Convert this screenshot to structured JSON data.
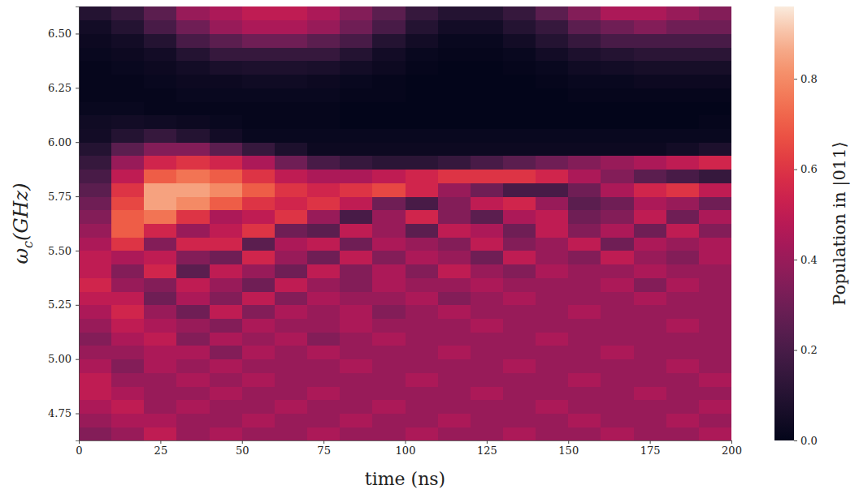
{
  "chart_data": {
    "type": "heatmap",
    "xlabel": "time (ns)",
    "ylabel": [
      "ω",
      "c",
      "(GHz)"
    ],
    "xlim": [
      0,
      200
    ],
    "ylim": [
      4.625,
      6.625
    ],
    "xticks": [
      0,
      25,
      50,
      75,
      100,
      125,
      150,
      175,
      200
    ],
    "yticks": [
      4.75,
      {
        "value": 5,
        "label": "5.00"
      },
      5.25,
      {
        "value": 5.5,
        "label": "5.50"
      },
      5.75,
      {
        "value": 6,
        "label": "6.00"
      },
      6.25,
      {
        "value": 6.5,
        "label": "6.50"
      }
    ],
    "x_bins": [
      0,
      10,
      20,
      30,
      40,
      50,
      60,
      70,
      80,
      90,
      100,
      110,
      120,
      130,
      140,
      150,
      160,
      170,
      180,
      190,
      200
    ],
    "y_bins": [
      4.625,
      4.6875,
      4.75,
      4.8125,
      4.875,
      4.9375,
      5,
      5.0625,
      5.125,
      5.1875,
      5.25,
      5.3125,
      5.375,
      5.4375,
      5.5,
      5.5625,
      5.625,
      5.6875,
      5.75,
      5.8125,
      5.875,
      5.9375,
      6,
      6.0625,
      6.125,
      6.1875,
      6.25,
      6.3125,
      6.375,
      6.4375,
      6.5,
      6.5625,
      6.625
    ],
    "values": [
      [
        0.35,
        0.4,
        0.5,
        0.4,
        0.45,
        0.4,
        0.4,
        0.45,
        0.4,
        0.4,
        0.45,
        0.4,
        0.4,
        0.45,
        0.4,
        0.4,
        0.45,
        0.4,
        0.4,
        0.45
      ],
      [
        0.4,
        0.45,
        0.45,
        0.4,
        0.4,
        0.45,
        0.4,
        0.4,
        0.45,
        0.4,
        0.4,
        0.45,
        0.4,
        0.4,
        0.4,
        0.45,
        0.4,
        0.4,
        0.45,
        0.4
      ],
      [
        0.45,
        0.5,
        0.4,
        0.45,
        0.4,
        0.4,
        0.45,
        0.4,
        0.4,
        0.45,
        0.4,
        0.4,
        0.4,
        0.4,
        0.45,
        0.4,
        0.4,
        0.4,
        0.4,
        0.45
      ],
      [
        0.5,
        0.45,
        0.4,
        0.4,
        0.45,
        0.4,
        0.4,
        0.45,
        0.4,
        0.4,
        0.4,
        0.4,
        0.45,
        0.4,
        0.4,
        0.4,
        0.4,
        0.45,
        0.4,
        0.4
      ],
      [
        0.5,
        0.4,
        0.4,
        0.45,
        0.4,
        0.45,
        0.4,
        0.4,
        0.4,
        0.4,
        0.45,
        0.4,
        0.4,
        0.4,
        0.4,
        0.45,
        0.4,
        0.4,
        0.4,
        0.45
      ],
      [
        0.45,
        0.35,
        0.45,
        0.4,
        0.45,
        0.4,
        0.4,
        0.4,
        0.45,
        0.4,
        0.4,
        0.4,
        0.4,
        0.45,
        0.4,
        0.4,
        0.4,
        0.4,
        0.45,
        0.4
      ],
      [
        0.4,
        0.4,
        0.45,
        0.45,
        0.35,
        0.45,
        0.4,
        0.45,
        0.4,
        0.4,
        0.4,
        0.45,
        0.4,
        0.4,
        0.4,
        0.4,
        0.45,
        0.4,
        0.4,
        0.4
      ],
      [
        0.35,
        0.45,
        0.5,
        0.35,
        0.45,
        0.4,
        0.45,
        0.35,
        0.4,
        0.45,
        0.4,
        0.4,
        0.4,
        0.4,
        0.45,
        0.4,
        0.4,
        0.4,
        0.4,
        0.4
      ],
      [
        0.4,
        0.5,
        0.45,
        0.4,
        0.35,
        0.45,
        0.4,
        0.4,
        0.45,
        0.4,
        0.4,
        0.4,
        0.45,
        0.4,
        0.4,
        0.4,
        0.4,
        0.4,
        0.45,
        0.4
      ],
      [
        0.45,
        0.55,
        0.4,
        0.3,
        0.5,
        0.35,
        0.45,
        0.4,
        0.45,
        0.35,
        0.4,
        0.45,
        0.4,
        0.4,
        0.4,
        0.45,
        0.4,
        0.4,
        0.4,
        0.4
      ],
      [
        0.5,
        0.5,
        0.3,
        0.45,
        0.35,
        0.5,
        0.35,
        0.45,
        0.4,
        0.4,
        0.45,
        0.35,
        0.4,
        0.45,
        0.4,
        0.4,
        0.4,
        0.45,
        0.4,
        0.4
      ],
      [
        0.55,
        0.4,
        0.35,
        0.5,
        0.4,
        0.3,
        0.5,
        0.4,
        0.35,
        0.45,
        0.4,
        0.4,
        0.45,
        0.4,
        0.4,
        0.4,
        0.45,
        0.35,
        0.45,
        0.4
      ],
      [
        0.5,
        0.35,
        0.55,
        0.25,
        0.5,
        0.4,
        0.3,
        0.5,
        0.35,
        0.45,
        0.35,
        0.5,
        0.4,
        0.35,
        0.45,
        0.4,
        0.4,
        0.45,
        0.4,
        0.4
      ],
      [
        0.5,
        0.45,
        0.5,
        0.35,
        0.3,
        0.55,
        0.4,
        0.3,
        0.5,
        0.35,
        0.45,
        0.4,
        0.3,
        0.5,
        0.4,
        0.35,
        0.5,
        0.4,
        0.35,
        0.45
      ],
      [
        0.45,
        0.6,
        0.35,
        0.55,
        0.55,
        0.25,
        0.45,
        0.5,
        0.3,
        0.45,
        0.4,
        0.35,
        0.5,
        0.35,
        0.4,
        0.5,
        0.3,
        0.45,
        0.4,
        0.45
      ],
      [
        0.4,
        0.7,
        0.55,
        0.4,
        0.5,
        0.6,
        0.3,
        0.25,
        0.5,
        0.4,
        0.25,
        0.5,
        0.45,
        0.3,
        0.5,
        0.35,
        0.45,
        0.3,
        0.5,
        0.35
      ],
      [
        0.35,
        0.7,
        0.75,
        0.6,
        0.45,
        0.5,
        0.6,
        0.4,
        0.2,
        0.4,
        0.55,
        0.35,
        0.25,
        0.45,
        0.5,
        0.3,
        0.35,
        0.5,
        0.3,
        0.45
      ],
      [
        0.3,
        0.65,
        0.85,
        0.8,
        0.7,
        0.6,
        0.55,
        0.6,
        0.5,
        0.3,
        0.2,
        0.35,
        0.5,
        0.55,
        0.4,
        0.25,
        0.3,
        0.45,
        0.4,
        0.3
      ],
      [
        0.25,
        0.6,
        0.85,
        0.85,
        0.8,
        0.7,
        0.6,
        0.55,
        0.6,
        0.65,
        0.55,
        0.4,
        0.3,
        0.2,
        0.2,
        0.3,
        0.45,
        0.55,
        0.6,
        0.5
      ],
      [
        0.2,
        0.5,
        0.7,
        0.75,
        0.7,
        0.6,
        0.5,
        0.45,
        0.45,
        0.5,
        0.55,
        0.6,
        0.6,
        0.6,
        0.55,
        0.45,
        0.35,
        0.25,
        0.2,
        0.15
      ],
      [
        0.15,
        0.4,
        0.55,
        0.6,
        0.55,
        0.45,
        0.3,
        0.2,
        0.15,
        0.12,
        0.12,
        0.15,
        0.2,
        0.25,
        0.3,
        0.35,
        0.4,
        0.45,
        0.5,
        0.55
      ],
      [
        0.1,
        0.25,
        0.35,
        0.35,
        0.25,
        0.15,
        0.08,
        0.03,
        0.03,
        0.03,
        0.03,
        0.03,
        0.03,
        0.03,
        0.03,
        0.03,
        0.03,
        0.03,
        0.05,
        0.08
      ],
      [
        0.05,
        0.1,
        0.15,
        0.1,
        0.05,
        0.02,
        0.02,
        0.02,
        0.02,
        0.02,
        0.02,
        0.02,
        0.02,
        0.02,
        0.02,
        0.02,
        0.02,
        0.02,
        0.02,
        0.02
      ],
      [
        0.04,
        0.05,
        0.04,
        0.03,
        0.02,
        0.01,
        0.01,
        0.01,
        0,
        0,
        0,
        0,
        0,
        0,
        0,
        0,
        0,
        0,
        0,
        0.01
      ],
      [
        0.02,
        0.02,
        0.01,
        0.01,
        0.01,
        0.01,
        0.01,
        0.01,
        0,
        0,
        0,
        0,
        0,
        0,
        0,
        0,
        0,
        0,
        0,
        0
      ],
      [
        0.01,
        0.01,
        0.01,
        0.02,
        0.02,
        0.02,
        0.02,
        0.02,
        0.01,
        0.01,
        0,
        0,
        0,
        0,
        0,
        0.01,
        0.01,
        0.01,
        0.01,
        0.01
      ],
      [
        0.01,
        0.01,
        0.02,
        0.03,
        0.03,
        0.04,
        0.04,
        0.03,
        0.02,
        0.01,
        0,
        0,
        0,
        0,
        0.01,
        0.02,
        0.02,
        0.03,
        0.03,
        0.03
      ],
      [
        0.01,
        0.02,
        0.03,
        0.05,
        0.07,
        0.08,
        0.08,
        0.07,
        0.05,
        0.03,
        0.01,
        0,
        0,
        0.01,
        0.02,
        0.04,
        0.05,
        0.06,
        0.06,
        0.06
      ],
      [
        0.02,
        0.03,
        0.05,
        0.1,
        0.15,
        0.15,
        0.15,
        0.15,
        0.1,
        0.05,
        0.02,
        0.01,
        0.01,
        0.02,
        0.05,
        0.08,
        0.1,
        0.12,
        0.12,
        0.12
      ],
      [
        0.03,
        0.05,
        0.1,
        0.2,
        0.25,
        0.3,
        0.3,
        0.25,
        0.2,
        0.1,
        0.05,
        0.02,
        0.02,
        0.05,
        0.1,
        0.15,
        0.2,
        0.2,
        0.2,
        0.2
      ],
      [
        0.05,
        0.1,
        0.2,
        0.3,
        0.4,
        0.45,
        0.45,
        0.4,
        0.3,
        0.2,
        0.1,
        0.05,
        0.05,
        0.1,
        0.15,
        0.25,
        0.3,
        0.35,
        0.3,
        0.3
      ],
      [
        0.1,
        0.15,
        0.25,
        0.4,
        0.45,
        0.5,
        0.5,
        0.45,
        0.35,
        0.25,
        0.15,
        0.1,
        0.1,
        0.15,
        0.25,
        0.35,
        0.45,
        0.45,
        0.4,
        0.35
      ]
    ],
    "colorbar": {
      "label": "Population in |011⟩",
      "range": [
        0,
        0.96
      ],
      "ticks": [
        {
          "value": 0,
          "label": "0.0"
        },
        0.2,
        0.4,
        0.6,
        0.8
      ]
    }
  }
}
